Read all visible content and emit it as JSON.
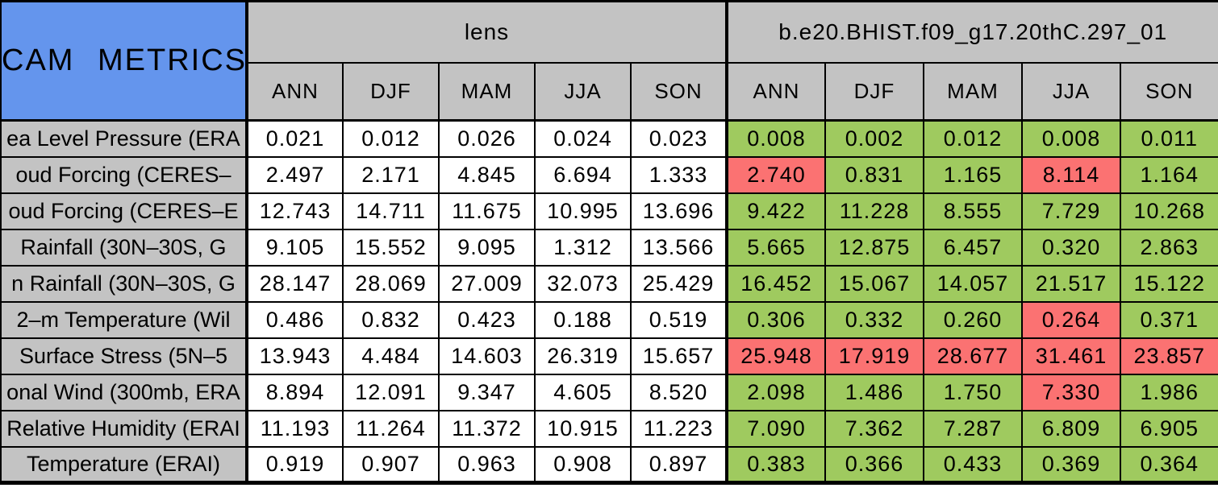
{
  "chart_data": {
    "type": "table",
    "title": "CAM METRICS",
    "column_groups": [
      {
        "label": "lens"
      },
      {
        "label": "b.e20.BHIST.f09_g17.20thC.297_01"
      }
    ],
    "seasons": [
      "ANN",
      "DJF",
      "MAM",
      "JJA",
      "SON"
    ],
    "rows": [
      {
        "label": "ea Level Pressure (ERA",
        "lens": [
          "0.021",
          "0.012",
          "0.026",
          "0.024",
          "0.023"
        ],
        "model": [
          "0.008",
          "0.002",
          "0.012",
          "0.008",
          "0.011"
        ],
        "model_status": [
          "good",
          "good",
          "good",
          "good",
          "good"
        ]
      },
      {
        "label": "oud Forcing (CERES–",
        "lens": [
          "2.497",
          "2.171",
          "4.845",
          "6.694",
          "1.333"
        ],
        "model": [
          "2.740",
          "0.831",
          "1.165",
          "8.114",
          "1.164"
        ],
        "model_status": [
          "bad",
          "good",
          "good",
          "bad",
          "good"
        ]
      },
      {
        "label": "oud Forcing (CERES–E",
        "lens": [
          "12.743",
          "14.711",
          "11.675",
          "10.995",
          "13.696"
        ],
        "model": [
          "9.422",
          "11.228",
          "8.555",
          "7.729",
          "10.268"
        ],
        "model_status": [
          "good",
          "good",
          "good",
          "good",
          "good"
        ]
      },
      {
        "label": "Rainfall (30N–30S, G",
        "lens": [
          "9.105",
          "15.552",
          "9.095",
          "1.312",
          "13.566"
        ],
        "model": [
          "5.665",
          "12.875",
          "6.457",
          "0.320",
          "2.863"
        ],
        "model_status": [
          "good",
          "good",
          "good",
          "good",
          "good"
        ]
      },
      {
        "label": "n Rainfall (30N–30S, G",
        "lens": [
          "28.147",
          "28.069",
          "27.009",
          "32.073",
          "25.429"
        ],
        "model": [
          "16.452",
          "15.067",
          "14.057",
          "21.517",
          "15.122"
        ],
        "model_status": [
          "good",
          "good",
          "good",
          "good",
          "good"
        ]
      },
      {
        "label": "2–m Temperature (Wil",
        "lens": [
          "0.486",
          "0.832",
          "0.423",
          "0.188",
          "0.519"
        ],
        "model": [
          "0.306",
          "0.332",
          "0.260",
          "0.264",
          "0.371"
        ],
        "model_status": [
          "good",
          "good",
          "good",
          "bad",
          "good"
        ]
      },
      {
        "label": "Surface Stress (5N–5",
        "lens": [
          "13.943",
          "4.484",
          "14.603",
          "26.319",
          "15.657"
        ],
        "model": [
          "25.948",
          "17.919",
          "28.677",
          "31.461",
          "23.857"
        ],
        "model_status": [
          "bad",
          "bad",
          "bad",
          "bad",
          "bad"
        ]
      },
      {
        "label": "onal Wind (300mb, ERA",
        "lens": [
          "8.894",
          "12.091",
          "9.347",
          "4.605",
          "8.520"
        ],
        "model": [
          "2.098",
          "1.486",
          "1.750",
          "7.330",
          "1.986"
        ],
        "model_status": [
          "good",
          "good",
          "good",
          "bad",
          "good"
        ]
      },
      {
        "label": "Relative Humidity (ERAI",
        "lens": [
          "11.193",
          "11.264",
          "11.372",
          "10.915",
          "11.223"
        ],
        "model": [
          "7.090",
          "7.362",
          "7.287",
          "6.809",
          "6.905"
        ],
        "model_status": [
          "good",
          "good",
          "good",
          "good",
          "good"
        ]
      },
      {
        "label": "Temperature (ERAI)",
        "lens": [
          "0.919",
          "0.907",
          "0.963",
          "0.908",
          "0.897"
        ],
        "model": [
          "0.383",
          "0.366",
          "0.433",
          "0.369",
          "0.364"
        ],
        "model_status": [
          "good",
          "good",
          "good",
          "good",
          "good"
        ]
      }
    ]
  },
  "colors": {
    "title_bg": "#6495ed",
    "header_bg": "#c3c3c3",
    "value_bg": "#ffffff",
    "good_bg": "#9fca5f",
    "bad_bg": "#fb7272",
    "border": "#000000",
    "text": "#000000"
  }
}
